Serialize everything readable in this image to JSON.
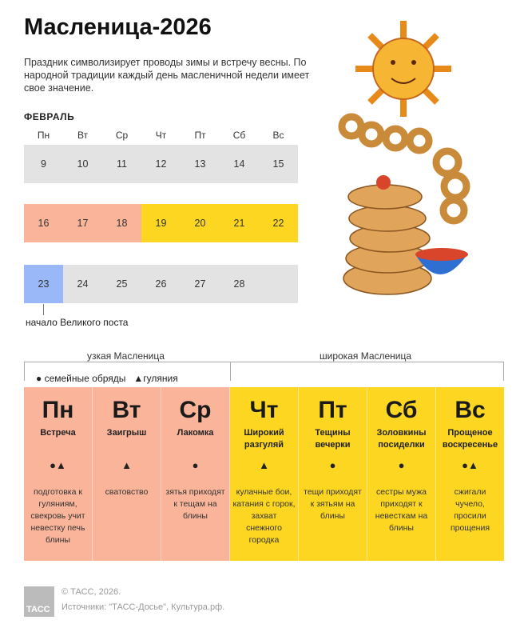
{
  "title": "Масленица-2026",
  "intro": "Праздник символизирует проводы зимы и встречу весны. По народной традиции каждый день масленичной недели имеет свое значение.",
  "calendar": {
    "month": "ФЕВРАЛЬ",
    "weekdays": [
      "Пн",
      "Вт",
      "Ср",
      "Чт",
      "Пт",
      "Сб",
      "Вс"
    ],
    "weeks": [
      [
        "9",
        "10",
        "11",
        "12",
        "13",
        "14",
        "15"
      ],
      [
        "16",
        "17",
        "18",
        "19",
        "20",
        "21",
        "22"
      ],
      [
        "23",
        "24",
        "25",
        "26",
        "27",
        "28",
        ""
      ]
    ],
    "lent_note": "начало Великого поста"
  },
  "colors": {
    "grey": "#e3e3e3",
    "narrow": "#f9b49a",
    "wide": "#fcd620",
    "lent": "#9ab8f7"
  },
  "periods": {
    "narrow": "узкая Масленица",
    "wide": "широкая Масленица"
  },
  "legend": {
    "family": "● семейные обряды",
    "fest": "▲гуляния"
  },
  "days": [
    {
      "day": "Пн",
      "name": "Встреча",
      "sym": "●▲",
      "text": "подготовка к гуляниям, свекровь учит невестку печь блины"
    },
    {
      "day": "Вт",
      "name": "Заигрыш",
      "sym": "▲",
      "text": "сватовство"
    },
    {
      "day": "Ср",
      "name": "Лакомка",
      "sym": "●",
      "text": "зятья приходят к тещам на блины"
    },
    {
      "day": "Чт",
      "name": "Широкий разгуляй",
      "sym": "▲",
      "text": "кулачные бои, катания с горок, захват снежного городка"
    },
    {
      "day": "Пт",
      "name": "Тещины вечерки",
      "sym": "●",
      "text": "тещи приходят к зятьям на блины"
    },
    {
      "day": "Сб",
      "name": "Золовкины посиделки",
      "sym": "●",
      "text": "сестры мужа приходят к невесткам на блины"
    },
    {
      "day": "Вс",
      "name": "Прощеное воскресенье",
      "sym": "●▲",
      "text": "сжигали чучело, просили прощения"
    }
  ],
  "footer": {
    "logo": "ТАСС",
    "copyright": "© ТАСС, 2026.",
    "sources": "Источники: \"ТАСС-Досье\", Культура.рф."
  }
}
